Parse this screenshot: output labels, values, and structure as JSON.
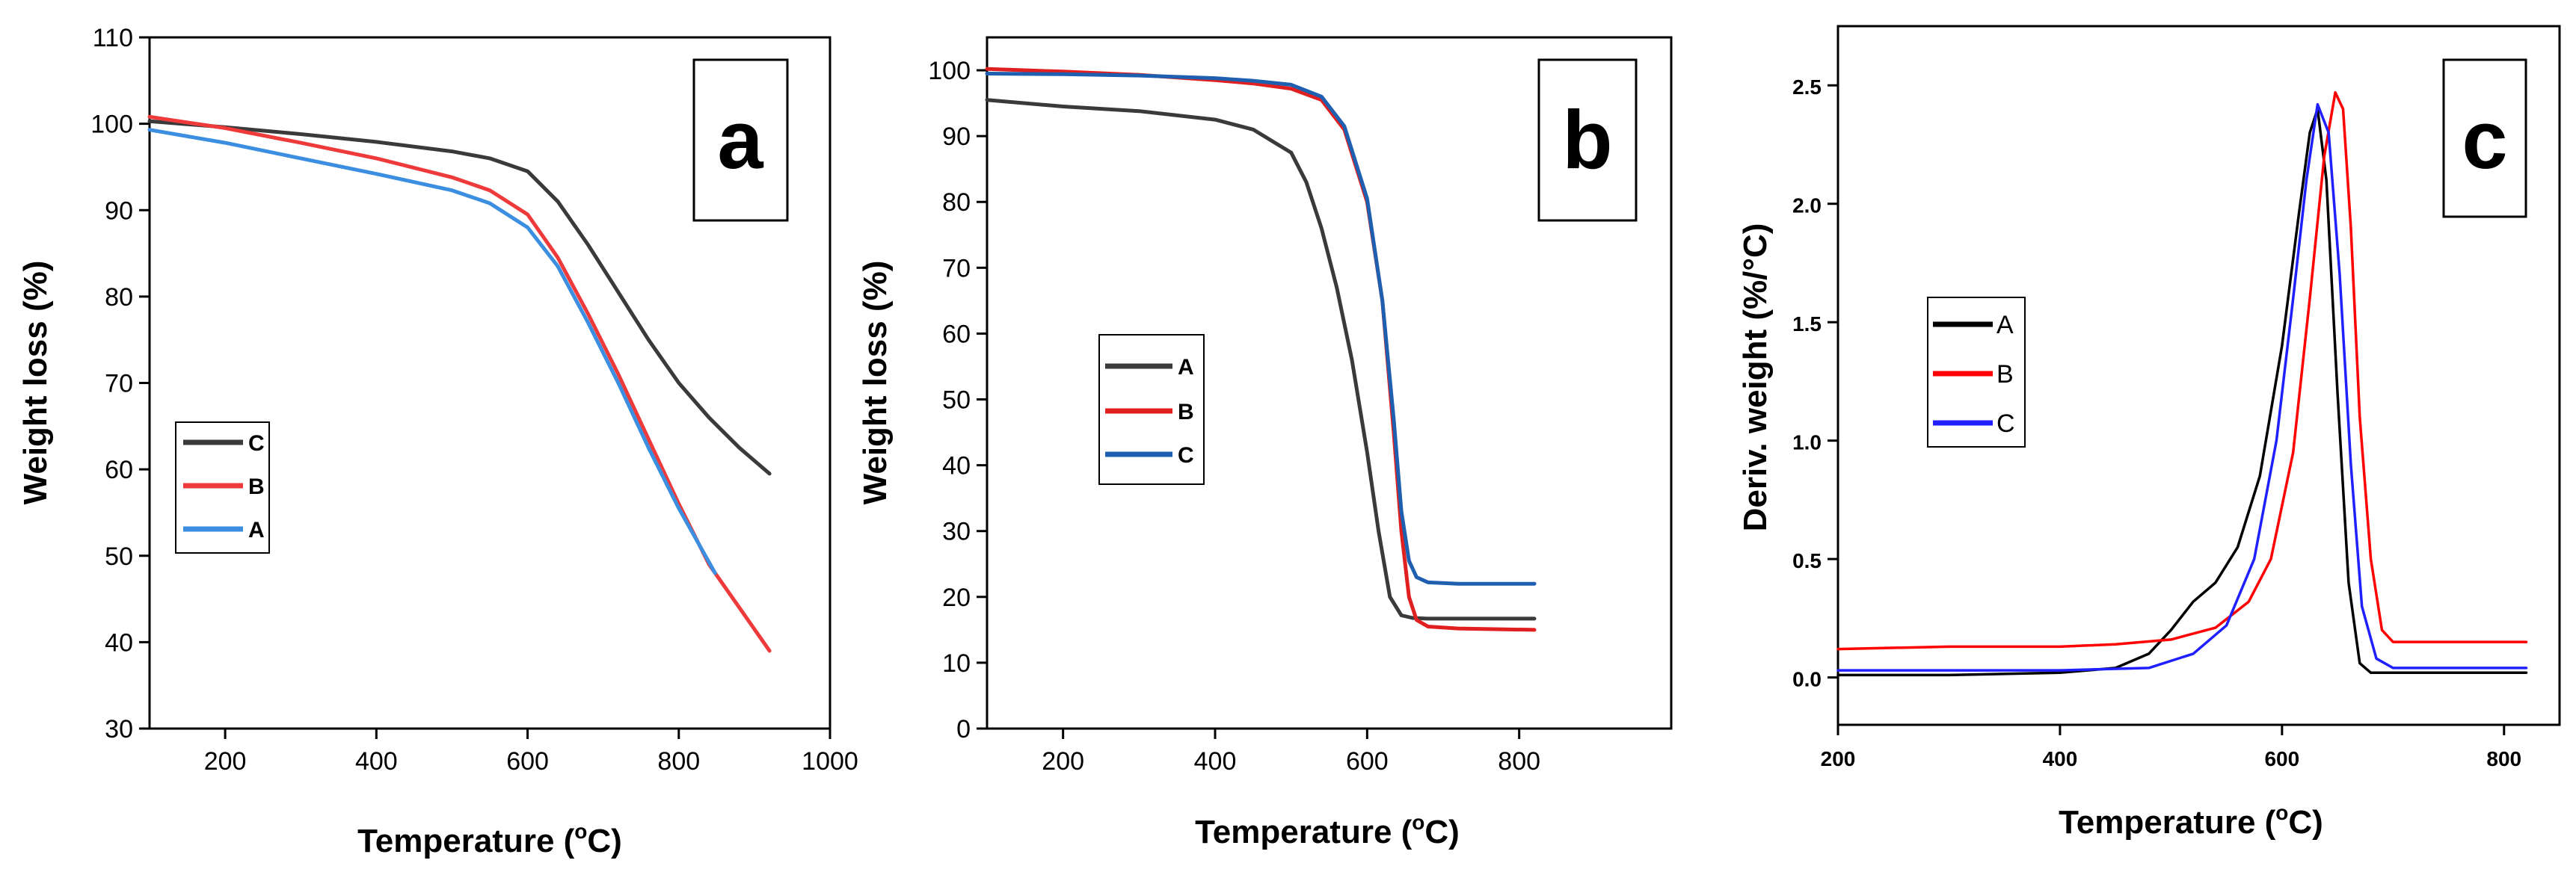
{
  "chart_data": [
    {
      "type": "line",
      "panel_label": "a",
      "xlabel": "Temperature (",
      "xlabel_unit": "o",
      "xlabel_tail": "C)",
      "ylabel": "Weight loss (%)",
      "xlim": [
        100,
        1000
      ],
      "ylim": [
        30,
        110
      ],
      "xticks": [
        200,
        400,
        600,
        800,
        1000
      ],
      "yticks": [
        30,
        40,
        50,
        60,
        70,
        80,
        90,
        100,
        110
      ],
      "legend_position": "middle-left",
      "legend": [
        "C",
        "B",
        "A"
      ],
      "series": [
        {
          "name": "C",
          "color": "#3a3a3a",
          "x": [
            100,
            200,
            300,
            400,
            500,
            550,
            600,
            640,
            680,
            720,
            760,
            800,
            840,
            880,
            920
          ],
          "y": [
            100.3,
            99.6,
            98.8,
            97.9,
            96.8,
            96.0,
            94.5,
            91.0,
            86.0,
            80.5,
            75.0,
            70.0,
            66.0,
            62.5,
            59.5
          ]
        },
        {
          "name": "B",
          "color": "#ee3a3a",
          "x": [
            100,
            200,
            300,
            400,
            500,
            550,
            600,
            640,
            680,
            720,
            760,
            800,
            840,
            880,
            920
          ],
          "y": [
            100.8,
            99.5,
            97.8,
            96.0,
            93.8,
            92.3,
            89.5,
            84.5,
            78.0,
            71.0,
            63.5,
            56.0,
            49.0,
            44.0,
            39.0
          ]
        },
        {
          "name": "A",
          "color": "#3b8ee0",
          "x": [
            100,
            200,
            300,
            400,
            500,
            550,
            600,
            640,
            680,
            720,
            760,
            800,
            848
          ],
          "y": [
            99.3,
            97.8,
            96.0,
            94.2,
            92.3,
            90.8,
            88.0,
            83.5,
            77.0,
            70.0,
            62.5,
            55.5,
            48.0
          ]
        }
      ]
    },
    {
      "type": "line",
      "panel_label": "b",
      "xlabel": "Temperature (",
      "xlabel_unit": "o",
      "xlabel_tail": "C)",
      "ylabel": "Weight loss (%)",
      "xlim": [
        100,
        1000
      ],
      "ylim": [
        0,
        105
      ],
      "xticks": [
        200,
        400,
        600,
        800
      ],
      "yticks": [
        0,
        10,
        20,
        30,
        40,
        50,
        60,
        70,
        80,
        90,
        100
      ],
      "legend_position": "middle-left",
      "legend": [
        "A",
        "B",
        "C"
      ],
      "series": [
        {
          "name": "A",
          "color": "#3a3a3a",
          "x": [
            100,
            200,
            300,
            400,
            450,
            500,
            520,
            540,
            560,
            580,
            600,
            615,
            630,
            645,
            660,
            680,
            720,
            820
          ],
          "y": [
            95.5,
            94.5,
            93.8,
            92.5,
            91.0,
            87.5,
            83.0,
            76.0,
            67.0,
            56.0,
            42.0,
            30.0,
            20.0,
            17.2,
            16.8,
            16.7,
            16.7,
            16.7
          ]
        },
        {
          "name": "B",
          "color": "#e02020",
          "x": [
            100,
            200,
            300,
            400,
            450,
            500,
            540,
            570,
            600,
            620,
            635,
            645,
            655,
            665,
            680,
            720,
            820
          ],
          "y": [
            100.2,
            99.8,
            99.3,
            98.5,
            98.0,
            97.2,
            95.5,
            91.0,
            80.0,
            65.0,
            45.0,
            30.0,
            20.0,
            16.5,
            15.5,
            15.2,
            15.0
          ]
        },
        {
          "name": "C",
          "color": "#1f5fb0",
          "x": [
            100,
            200,
            300,
            400,
            450,
            500,
            540,
            570,
            600,
            620,
            635,
            645,
            655,
            665,
            680,
            720,
            820
          ],
          "y": [
            99.5,
            99.4,
            99.2,
            98.8,
            98.4,
            97.8,
            96.0,
            91.5,
            80.5,
            65.0,
            47.0,
            33.0,
            25.5,
            23.0,
            22.2,
            22.0,
            22.0
          ]
        }
      ]
    },
    {
      "type": "line",
      "panel_label": "c",
      "xlabel": "Temperature (",
      "xlabel_unit": "o",
      "xlabel_tail": "C)",
      "ylabel": "Deriv. weight (%/°C)",
      "xlim": [
        200,
        850
      ],
      "ylim": [
        -0.2,
        2.75
      ],
      "xticks": [
        200,
        400,
        600,
        800
      ],
      "yticks": [
        0.0,
        0.5,
        1.0,
        1.5,
        2.0,
        2.5
      ],
      "ytick_labels": [
        "0.0",
        "0.5",
        "1.0",
        "1.5",
        "2.0",
        "2.5"
      ],
      "legend_position": "middle-left",
      "legend": [
        "A",
        "B",
        "C"
      ],
      "series": [
        {
          "name": "A",
          "color": "#000000",
          "x": [
            200,
            300,
            400,
            450,
            480,
            500,
            520,
            540,
            560,
            580,
            600,
            615,
            625,
            632,
            640,
            650,
            660,
            670,
            680,
            820
          ],
          "y": [
            0.01,
            0.01,
            0.02,
            0.04,
            0.1,
            0.2,
            0.32,
            0.4,
            0.55,
            0.85,
            1.4,
            1.95,
            2.3,
            2.4,
            2.1,
            1.2,
            0.4,
            0.06,
            0.02,
            0.02
          ]
        },
        {
          "name": "B",
          "color": "#ff0000",
          "x": [
            200,
            300,
            400,
            450,
            500,
            540,
            570,
            590,
            610,
            625,
            638,
            648,
            655,
            662,
            670,
            680,
            690,
            700,
            820
          ],
          "y": [
            0.12,
            0.13,
            0.13,
            0.14,
            0.16,
            0.21,
            0.32,
            0.5,
            0.95,
            1.6,
            2.2,
            2.47,
            2.4,
            1.9,
            1.1,
            0.5,
            0.2,
            0.15,
            0.15
          ]
        },
        {
          "name": "C",
          "color": "#2020ff",
          "x": [
            200,
            300,
            400,
            480,
            520,
            550,
            575,
            595,
            610,
            622,
            632,
            642,
            652,
            662,
            672,
            685,
            700,
            820
          ],
          "y": [
            0.03,
            0.03,
            0.03,
            0.04,
            0.1,
            0.22,
            0.5,
            1.0,
            1.6,
            2.1,
            2.42,
            2.3,
            1.7,
            0.9,
            0.3,
            0.08,
            0.04,
            0.04
          ]
        }
      ]
    }
  ]
}
